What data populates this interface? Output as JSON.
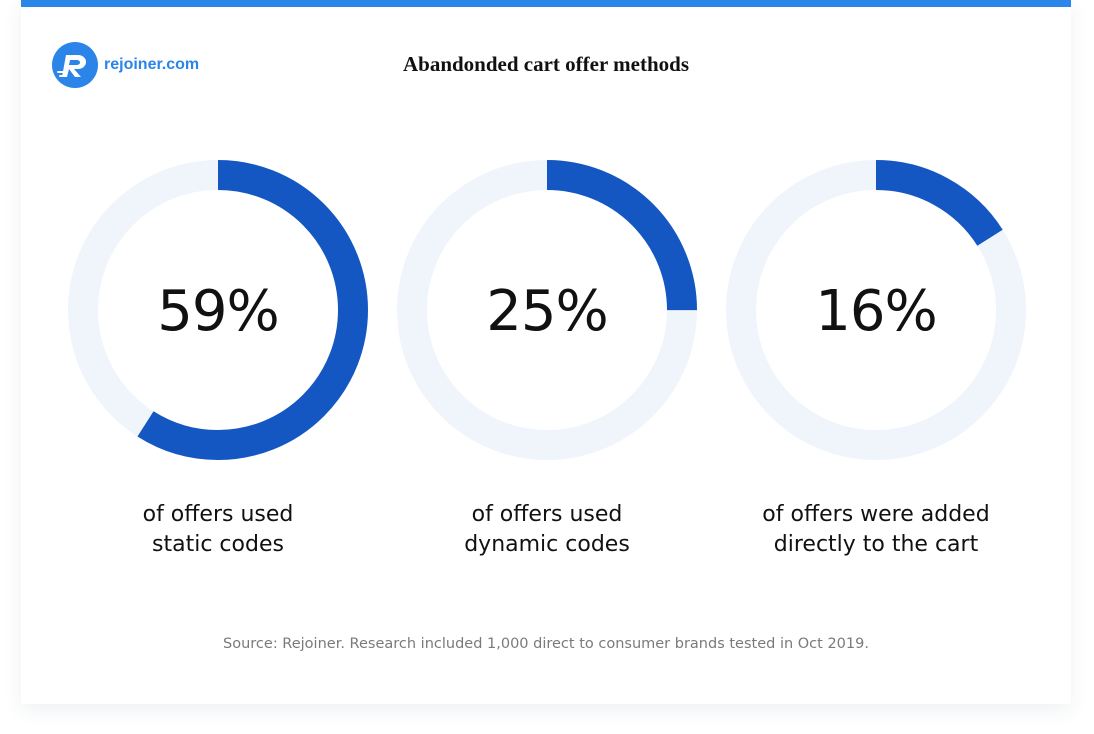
{
  "logo": {
    "mark": "R",
    "text": "rejoiner.com"
  },
  "colors": {
    "accent": "#1457c2",
    "track": "#f0f5fc",
    "top_bar": "#2a86e8",
    "logo_bg": "#2b84e8"
  },
  "chart_data": [
    {
      "type": "pie",
      "title": "Abandonded cart offer methods",
      "value": 59,
      "value_label": "59%",
      "caption_lines": [
        "of offers used",
        "static codes"
      ]
    },
    {
      "type": "pie",
      "value": 25,
      "value_label": "25%",
      "caption_lines": [
        "of offers used",
        "dynamic codes"
      ]
    },
    {
      "type": "pie",
      "value": 16,
      "value_label": "16%",
      "caption_lines": [
        "of offers were added",
        "directly to the cart"
      ]
    }
  ],
  "source": "Source: Rejoiner. Research included 1,000 direct to consumer brands tested in Oct 2019."
}
